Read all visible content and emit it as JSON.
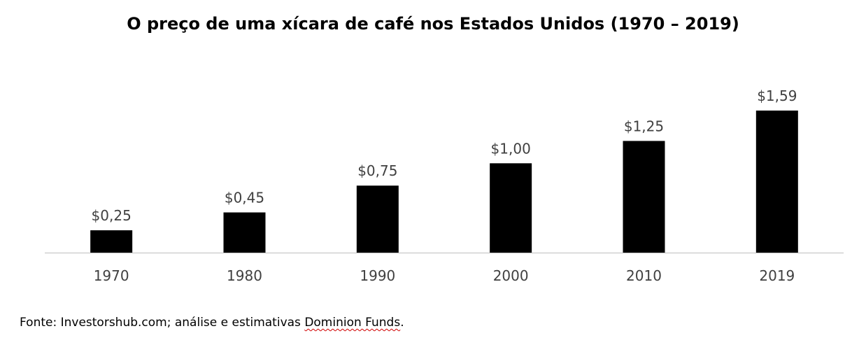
{
  "chart_data": {
    "type": "bar",
    "title": "O preço de uma xícara de café nos Estados Unidos (1970 – 2019)",
    "categories": [
      "1970",
      "1980",
      "1990",
      "2000",
      "2010",
      "2019"
    ],
    "values": [
      0.25,
      0.45,
      0.75,
      1.0,
      1.25,
      1.59
    ],
    "data_labels": [
      "$0,25",
      "$0,45",
      "$0,75",
      "$1,00",
      "$1,25",
      "$1,59"
    ],
    "xlabel": "",
    "ylabel": "",
    "ylim": [
      0,
      1.59
    ],
    "grid": false,
    "legend": "none",
    "bar_color": "#000000",
    "label_color": "#404040"
  },
  "footer": {
    "source_prefix": "Fonte: Investorshub.com; análise e estimativas ",
    "source_link": "Dominion Funds",
    "source_suffix": "."
  }
}
